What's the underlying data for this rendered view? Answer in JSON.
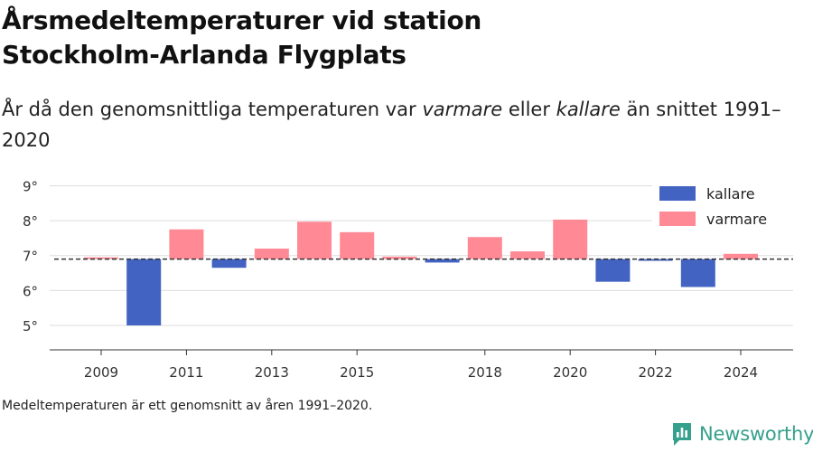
{
  "title_line1": "Årsmedeltemperaturer vid station",
  "title_line2": "Stockholm-Arlanda Flygplats",
  "subtitle": {
    "part1": "År då den genomsnittliga temperaturen var ",
    "warmer": "varmare",
    "part2": " eller ",
    "colder": "kallare",
    "part3": " än snittet 1991–2020"
  },
  "footnote": "Medeltemperaturen är ett genomsnitt av åren 1991–2020.",
  "brand": "Newsworthy",
  "colors": {
    "colder": "#4263c2",
    "warmer": "#ff8a96",
    "baseline": "#333333",
    "brand": "#35a08c"
  },
  "chart_data": {
    "type": "bar",
    "baseline": 6.9,
    "ylim": [
      4.3,
      9.4
    ],
    "yticks": [
      5,
      6,
      7,
      8,
      9
    ],
    "ytick_suffix": "°",
    "xticks": [
      2009,
      2011,
      2013,
      2015,
      2018,
      2020,
      2022,
      2024
    ],
    "legend": {
      "position": "top-right",
      "colder": "kallare",
      "warmer": "varmare"
    },
    "years": [
      2009,
      2010,
      2011,
      2012,
      2013,
      2014,
      2015,
      2016,
      2017,
      2018,
      2019,
      2020,
      2021,
      2022,
      2023,
      2024
    ],
    "values": [
      6.95,
      5.0,
      7.75,
      6.65,
      7.2,
      7.97,
      7.67,
      6.97,
      6.8,
      7.53,
      7.12,
      8.03,
      6.25,
      6.85,
      6.1,
      7.05
    ]
  }
}
